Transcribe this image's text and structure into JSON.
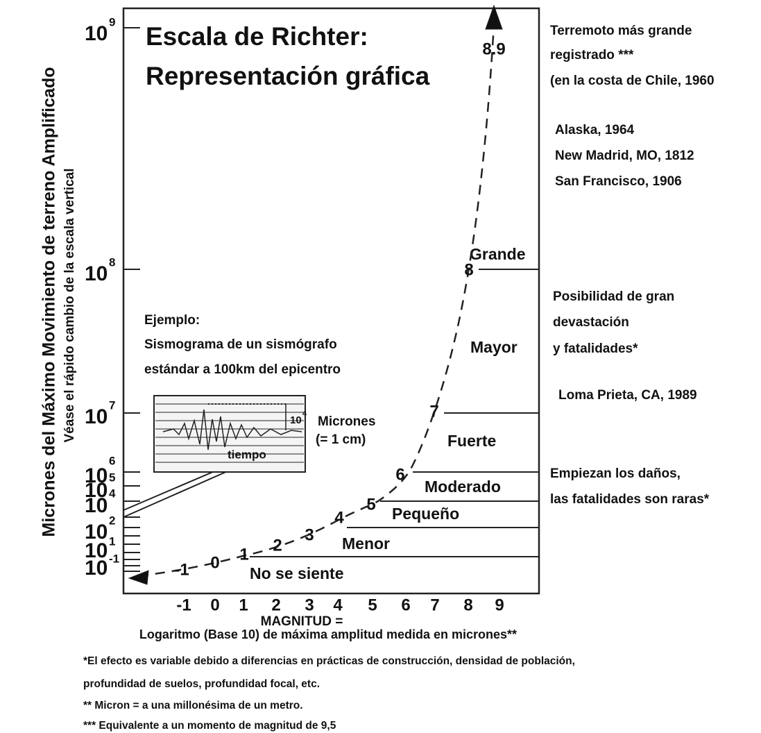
{
  "title": [
    "Escala de Richter:",
    "Representación gráfica"
  ],
  "y_axis": {
    "label": "Micrones del Máximo Movimiento de terreno Amplificado",
    "sublabel": "Véase el rápido cambio de la escala vertical"
  },
  "y_ticks": [
    {
      "base": "10",
      "exp": "9"
    },
    {
      "base": "10",
      "exp": "8"
    },
    {
      "base": "10",
      "exp": "7"
    },
    {
      "base": "10",
      "exp": "6"
    },
    {
      "base": "10",
      "exp": "5"
    },
    {
      "base": "10",
      "exp": "4"
    },
    {
      "base": "10",
      "exp": "2"
    },
    {
      "base": "10",
      "exp": "1"
    },
    {
      "base": "10",
      "exp": "-1"
    }
  ],
  "x_axis": {
    "label": "MAGNITUD =",
    "sublabel": "Logaritmo (Base 10) de máxima amplitud medida en micrones**"
  },
  "x_ticks": [
    "-1",
    "0",
    "1",
    "2",
    "3",
    "4",
    "5",
    "6",
    "7",
    "8",
    "9"
  ],
  "curve_labels": [
    "-1",
    "0",
    "1",
    "2",
    "3",
    "4",
    "5",
    "6",
    "7",
    "8",
    "8.9"
  ],
  "categories": [
    "No se siente",
    "Menor",
    "Pequeño",
    "Moderado",
    "Fuerte",
    "Mayor",
    "Grande"
  ],
  "example": {
    "lines": [
      "Ejemplo:",
      "Sismograma de un sismógrafo",
      "estándar a 100km del epicentro"
    ],
    "time": "tiempo",
    "amp_base": "10",
    "amp_exp": "4",
    "unit": "Micrones",
    "unit_note": "(= 1 cm)"
  },
  "notes": [
    "Terremoto más grande",
    "registrado ***",
    "(en la costa de Chile, 1960",
    "Alaska, 1964",
    "New Madrid, MO, 1812",
    "San Francisco, 1906",
    "Posibilidad de gran",
    "devastación",
    "y fatalidades*",
    "Loma Prieta, CA, 1989",
    "Empiezan los daños,",
    "las fatalidades son raras*"
  ],
  "footnotes": [
    "*El efecto es variable debido a diferencias en prácticas de construcción, densidad de población,",
    "profundidad de suelos, profundidad focal, etc.",
    "** Micron = a una millonésima de un metro.",
    "*** Equivalente a un momento de magnitud de 9,5"
  ]
}
